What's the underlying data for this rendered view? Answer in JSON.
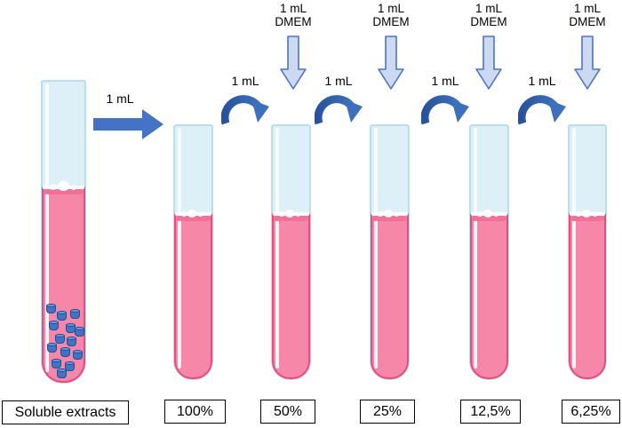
{
  "colors": {
    "glass-fill": "#ddeff7",
    "glass-border": "#bcdeeb",
    "liquid-pink": "#f687a8",
    "liquid-dark": "#ee6e96",
    "liquid-border": "#e94d80",
    "particle-blue": "#4472c4",
    "particle-top": "#6d97d8",
    "particle-border": "#1f4e92",
    "arrow-blue": "#4472c4",
    "arc-blue-dark": "#28539c",
    "arc-blue-light": "#3e6fbd",
    "dmem-arrow-fill": "#ccd9f1",
    "dmem-arrow-border": "#4b74c4"
  },
  "source_tube": {
    "label": "Soluble extracts",
    "particles": [
      [
        6,
        253
      ],
      [
        18,
        261
      ],
      [
        33,
        259
      ],
      [
        9,
        272
      ],
      [
        28,
        275
      ],
      [
        38,
        279
      ],
      [
        16,
        287
      ],
      [
        29,
        290
      ],
      [
        7,
        297
      ],
      [
        22,
        302
      ],
      [
        36,
        305
      ],
      [
        12,
        315
      ],
      [
        27,
        318
      ],
      [
        18,
        326
      ]
    ]
  },
  "transfer_arrow": {
    "label": "1 mL"
  },
  "dilution_arrows": [
    {
      "label": "1 mL"
    },
    {
      "label": "1 mL"
    },
    {
      "label": "1 mL"
    },
    {
      "label": "1 mL"
    }
  ],
  "dmem_arrows": [
    {
      "line1": "1 mL",
      "line2": "DMEM"
    },
    {
      "line1": "1 mL",
      "line2": "DMEM"
    },
    {
      "line1": "1 mL",
      "line2": "DMEM"
    },
    {
      "line1": "1 mL",
      "line2": "DMEM"
    }
  ],
  "tubes": [
    {
      "label": "100%"
    },
    {
      "label": "50%"
    },
    {
      "label": "25%"
    },
    {
      "label": "12,5%"
    },
    {
      "label": "6,25%"
    }
  ]
}
